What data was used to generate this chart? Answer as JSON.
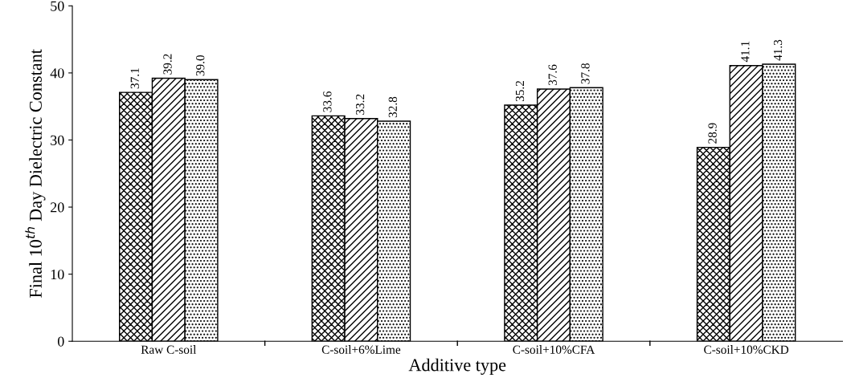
{
  "chart_data": {
    "type": "bar",
    "xlabel": "Additive type",
    "ylabel": "Final 10$^{th}$ Day Dielectric Constant",
    "categories": [
      "Raw C-soil",
      "C-soil+6%Lime",
      "C-soil+10%CFA",
      "C-soil+10%CKD"
    ],
    "series": [
      {
        "color": "#000000",
        "values": [
          37.1,
          33.6,
          35.2,
          28.9
        ]
      },
      {
        "color": "#000000",
        "values": [
          39.2,
          33.2,
          37.6,
          41.1
        ]
      },
      {
        "color": "#000000",
        "values": [
          39.0,
          32.8,
          37.8,
          41.3
        ],
        "value_labels": [
          "39.0",
          "32.8",
          "37.8",
          "41.3"
        ]
      }
    ],
    "ylim": [
      0,
      50
    ],
    "yticks": [
      0,
      10,
      20,
      30,
      40,
      50
    ],
    "data_labels": true,
    "grid": false,
    "legend": false
  }
}
